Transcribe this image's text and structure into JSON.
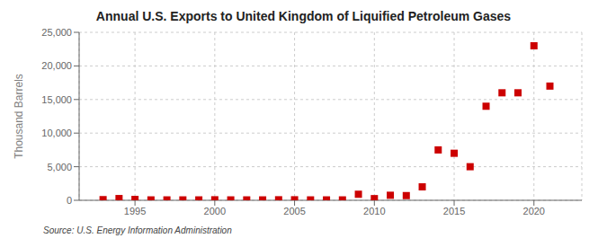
{
  "chart_data": {
    "type": "scatter",
    "title": "Annual U.S. Exports to United Kingdom of Liquified Petroleum Gases",
    "ylabel": "Thousand Barrels",
    "annotation": "Source: U.S. Energy Information Administration",
    "x": [
      1993,
      1994,
      1995,
      1996,
      1997,
      1998,
      1999,
      2000,
      2001,
      2002,
      2003,
      2004,
      2005,
      2006,
      2007,
      2008,
      2009,
      2010,
      2011,
      2012,
      2013,
      2014,
      2015,
      2016,
      2017,
      2018,
      2019,
      2020,
      2021
    ],
    "values": [
      100,
      260,
      130,
      60,
      60,
      60,
      60,
      80,
      60,
      60,
      60,
      80,
      80,
      60,
      60,
      60,
      900,
      250,
      750,
      700,
      2000,
      7500,
      7000,
      5000,
      14000,
      16000,
      16000,
      23000,
      17000
    ],
    "color": "#cc0000",
    "marker": "square",
    "xlim": [
      1991.5,
      2023
    ],
    "ylim": [
      0,
      25000
    ],
    "xticks": [
      1995,
      2000,
      2005,
      2010,
      2015,
      2020
    ],
    "yticks": [
      0,
      {
        "value": 5000,
        "label": "5,000"
      },
      {
        "value": 10000,
        "label": "10,000"
      },
      {
        "value": 15000,
        "label": "15,000"
      },
      {
        "value": 20000,
        "label": "20,000"
      },
      {
        "value": 25000,
        "label": "25,000"
      }
    ],
    "grid": true
  }
}
